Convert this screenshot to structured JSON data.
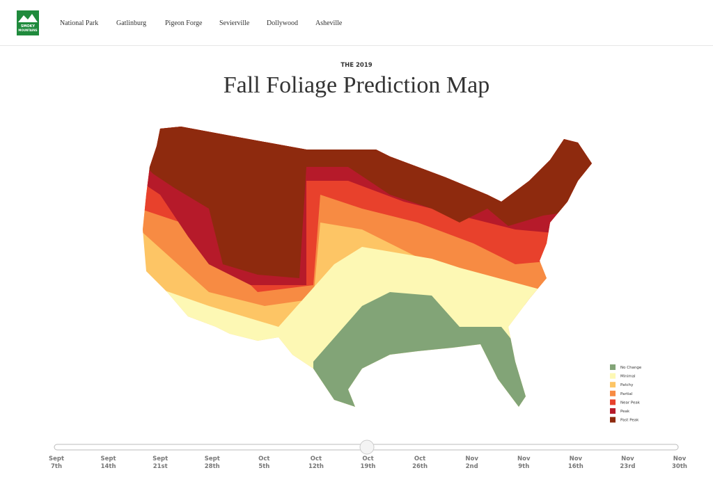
{
  "header": {
    "logo": {
      "line1": "SMOKY",
      "line2": "MOUNTAINS"
    },
    "nav": [
      "National Park",
      "Gatlinburg",
      "Pigeon Forge",
      "Sevierville",
      "Dollywood",
      "Asheville"
    ]
  },
  "map": {
    "subtitle": "THE 2019",
    "title": "Fall Foliage Prediction Map",
    "legend": [
      {
        "label": "No Change",
        "color": "#82a477"
      },
      {
        "label": "Minimal",
        "color": "#fdf8b4"
      },
      {
        "label": "Patchy",
        "color": "#fdc565"
      },
      {
        "label": "Partial",
        "color": "#f78b43"
      },
      {
        "label": "Near Peak",
        "color": "#e8412c"
      },
      {
        "label": "Peak",
        "color": "#b61a2a"
      },
      {
        "label": "Past Peak",
        "color": "#8e2a0e"
      }
    ]
  },
  "slider": {
    "labels": [
      {
        "month": "Sept",
        "day": "7th"
      },
      {
        "month": "Sept",
        "day": "14th"
      },
      {
        "month": "Sept",
        "day": "21st"
      },
      {
        "month": "Sept",
        "day": "28th"
      },
      {
        "month": "Oct",
        "day": "5th"
      },
      {
        "month": "Oct",
        "day": "12th"
      },
      {
        "month": "Oct",
        "day": "19th"
      },
      {
        "month": "Oct",
        "day": "26th"
      },
      {
        "month": "Nov",
        "day": "2nd"
      },
      {
        "month": "Nov",
        "day": "9th"
      },
      {
        "month": "Nov",
        "day": "16th"
      },
      {
        "month": "Nov",
        "day": "23rd"
      },
      {
        "month": "Nov",
        "day": "30th"
      }
    ]
  }
}
